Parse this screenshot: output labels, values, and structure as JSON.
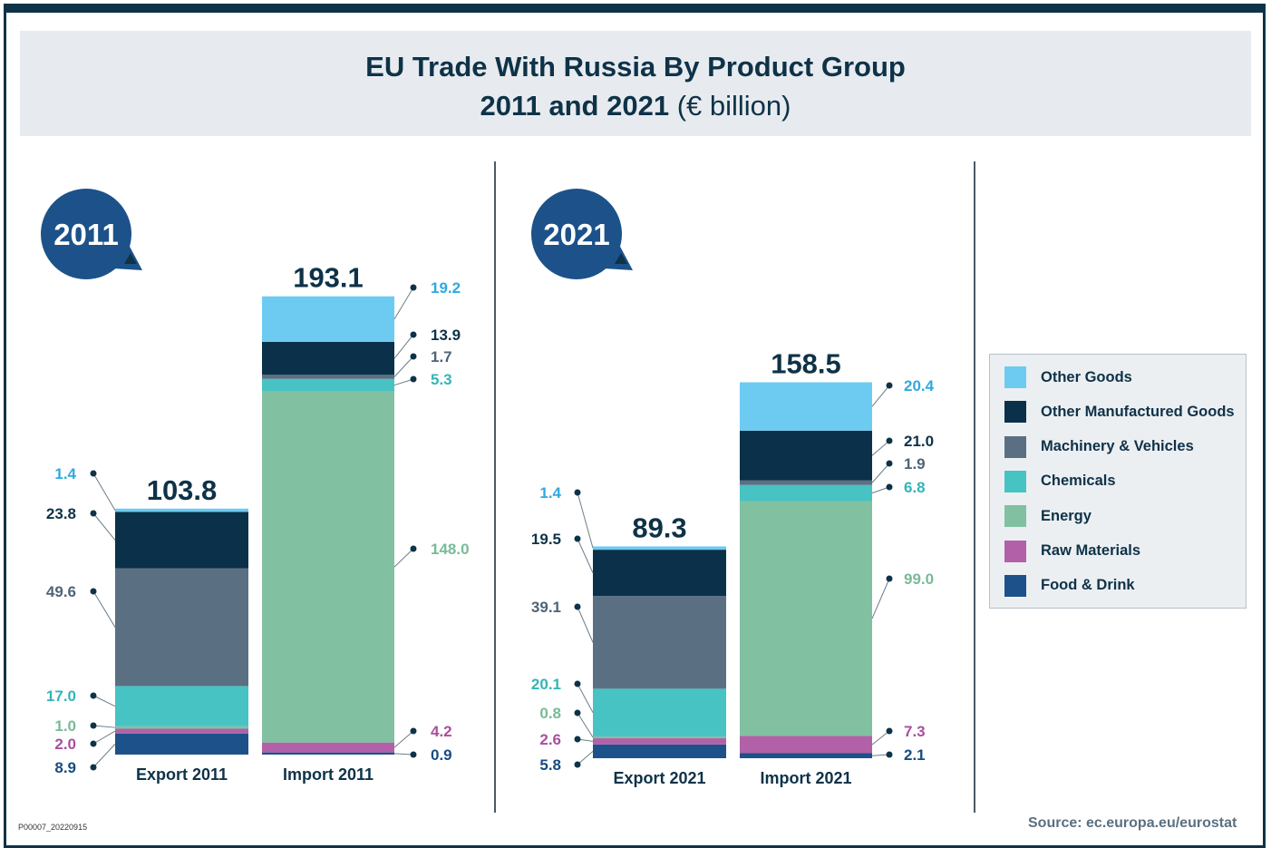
{
  "title": {
    "line1": "EU Trade With Russia By Product Group",
    "line2_bold": "2011 and 2021",
    "line2_rest": "(€ billion)"
  },
  "colors": {
    "Other Goods": "#6dcbf2",
    "Other Manufactured Goods": "#0a3149",
    "Machinery & Vehicles": "#5a7082",
    "Chemicals": "#47c3c3",
    "Energy": "#81c1a2",
    "Raw Materials": "#b261a8",
    "Food & Drink": "#1c5289",
    "badge": "#1c5289",
    "ink": "#0e3248"
  },
  "legend": {
    "items": [
      "Other Goods",
      "Other Manufactured Goods",
      "Machinery & Vehicles",
      "Chemicals",
      "Energy",
      "Raw Materials",
      "Food & Drink"
    ]
  },
  "chart_data": [
    {
      "type": "bar",
      "badge": "2011",
      "stacked": true,
      "categories": [
        "Export 2011",
        "Import 2011"
      ],
      "totals": [
        "103.8",
        "193.1"
      ],
      "series": [
        {
          "name": "Food & Drink",
          "values": [
            8.9,
            0.9
          ],
          "labels": [
            "8.9",
            "0.9"
          ]
        },
        {
          "name": "Raw Materials",
          "values": [
            2.0,
            4.2
          ],
          "labels": [
            "2.0",
            "4.2"
          ]
        },
        {
          "name": "Energy",
          "values": [
            1.0,
            148.0
          ],
          "labels": [
            "1.0",
            "148.0"
          ]
        },
        {
          "name": "Chemicals",
          "values": [
            17.0,
            5.3
          ],
          "labels": [
            "17.0",
            "5.3"
          ]
        },
        {
          "name": "Machinery & Vehicles",
          "values": [
            49.6,
            1.7
          ],
          "labels": [
            "49.6",
            "1.7"
          ]
        },
        {
          "name": "Other Manufactured Goods",
          "values": [
            23.8,
            13.9
          ],
          "labels": [
            "23.8",
            "13.9"
          ]
        },
        {
          "name": "Other Goods",
          "values": [
            1.4,
            19.2
          ],
          "labels": [
            "1.4",
            "19.2"
          ]
        }
      ]
    },
    {
      "type": "bar",
      "badge": "2021",
      "stacked": true,
      "categories": [
        "Export 2021",
        "Import 2021"
      ],
      "totals": [
        "89.3",
        "158.5"
      ],
      "series": [
        {
          "name": "Food & Drink",
          "values": [
            5.8,
            2.1
          ],
          "labels": [
            "5.8",
            "2.1"
          ]
        },
        {
          "name": "Raw Materials",
          "values": [
            2.6,
            7.3
          ],
          "labels": [
            "2.6",
            "7.3"
          ]
        },
        {
          "name": "Energy",
          "values": [
            0.8,
            99.0
          ],
          "labels": [
            "0.8",
            "99.0"
          ]
        },
        {
          "name": "Chemicals",
          "values": [
            20.1,
            6.8
          ],
          "labels": [
            "20.1",
            "6.8"
          ]
        },
        {
          "name": "Machinery & Vehicles",
          "values": [
            39.1,
            1.9
          ],
          "labels": [
            "39.1",
            "1.9"
          ]
        },
        {
          "name": "Other Manufactured Goods",
          "values": [
            19.5,
            21.0
          ],
          "labels": [
            "19.5",
            "21.0"
          ]
        },
        {
          "name": "Other Goods",
          "values": [
            1.4,
            20.4
          ],
          "labels": [
            "1.4",
            "20.4"
          ]
        }
      ]
    }
  ],
  "source": "Source: ec.europa.eu/eurostat",
  "code": "P00007_20220915"
}
